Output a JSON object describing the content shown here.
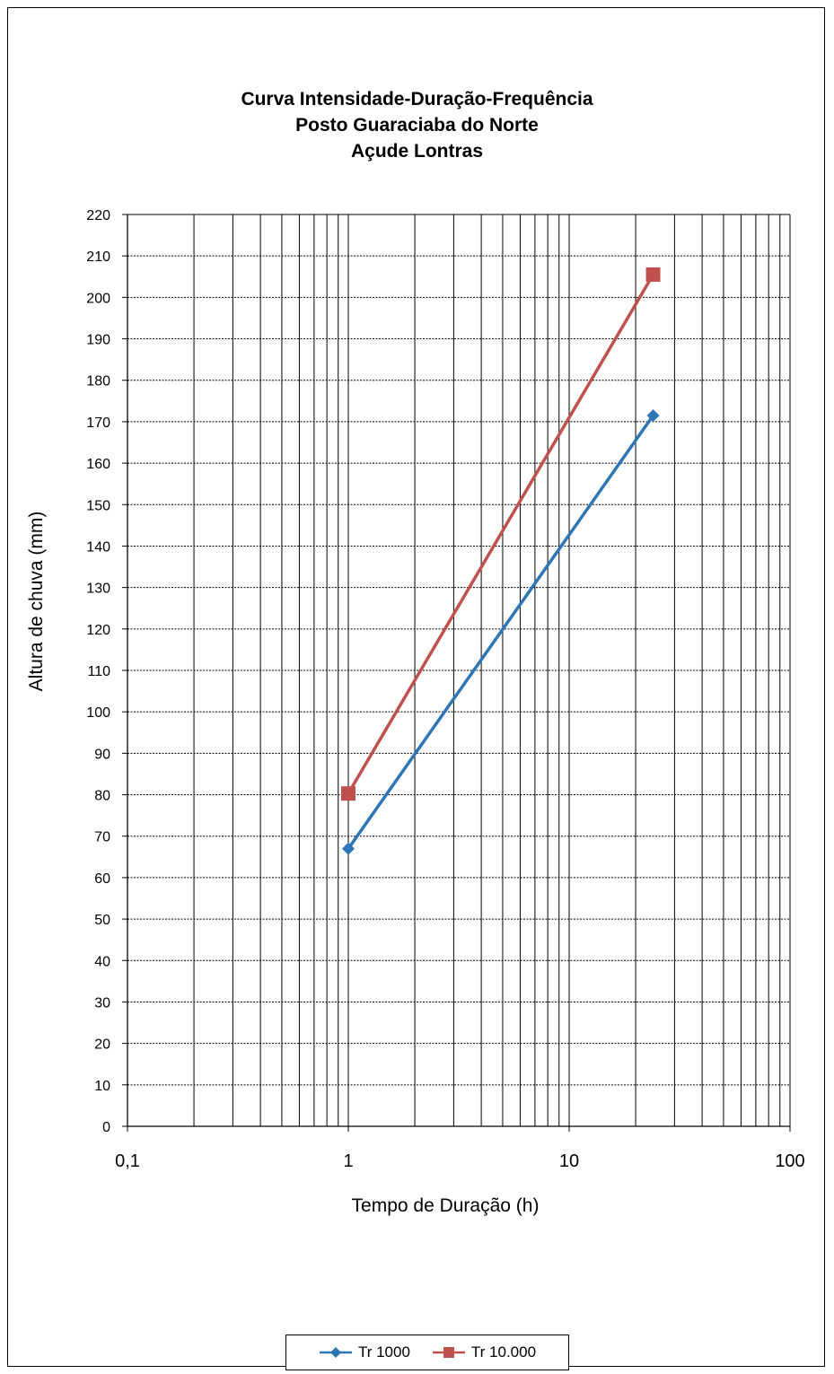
{
  "chart_data": {
    "type": "line",
    "title": [
      "Curva Intensidade-Duração-Frequência",
      "Posto Guaraciaba do Norte",
      "Açude Lontras"
    ],
    "xlabel": "Tempo de Duração (h)",
    "ylabel": "Altura de chuva (mm)",
    "x_scale": "log",
    "xlim": [
      0.1,
      100
    ],
    "ylim": [
      0,
      220
    ],
    "x_tick_labels": [
      "0,1",
      "1",
      "10",
      "100"
    ],
    "y_ticks": [
      0,
      10,
      20,
      30,
      40,
      50,
      60,
      70,
      80,
      90,
      100,
      110,
      120,
      130,
      140,
      150,
      160,
      170,
      180,
      190,
      200,
      210,
      220
    ],
    "grid": true,
    "legend_position": "bottom",
    "series": [
      {
        "name": "Tr 1000",
        "color": "#2E75B6",
        "marker": "diamond",
        "x": [
          1,
          24
        ],
        "values": [
          67,
          171.5
        ]
      },
      {
        "name": "Tr 10.000",
        "color": "#C0504D",
        "marker": "square",
        "x": [
          1,
          24
        ],
        "values": [
          80.3,
          205.5
        ]
      }
    ]
  }
}
